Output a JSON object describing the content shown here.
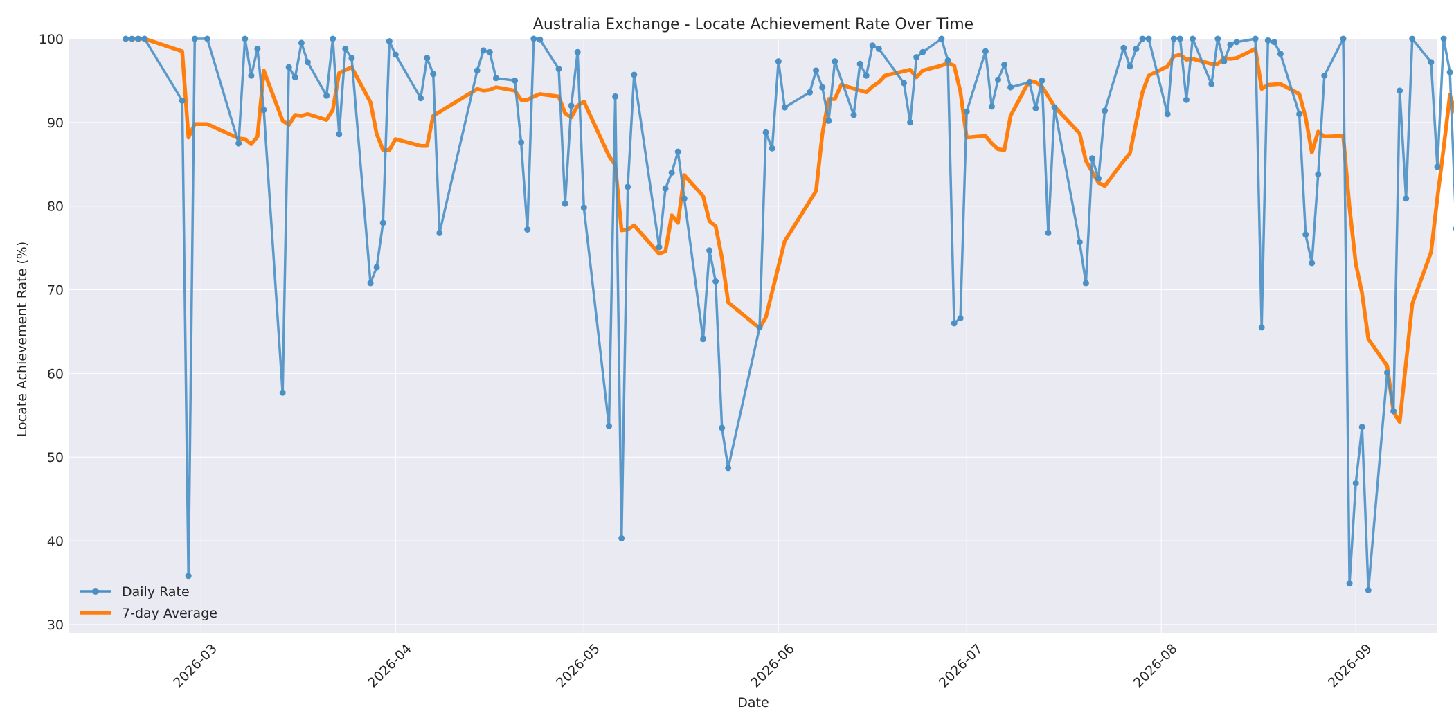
{
  "chart_data": {
    "type": "line",
    "title": "Australia Exchange - Locate Achievement Rate Over Time",
    "xlabel": "Date",
    "ylabel": "Locate Achievement Rate (%)",
    "xlim": [
      "2026-02-08",
      "2026-09-14"
    ],
    "ylim": [
      29,
      100
    ],
    "y_ticks": [
      30,
      40,
      50,
      60,
      70,
      80,
      90,
      100
    ],
    "x_ticks": [
      "2026-03-01",
      "2026-04-01",
      "2026-05-01",
      "2026-06-01",
      "2026-07-01",
      "2026-08-01",
      "2026-09-01"
    ],
    "x_tick_labels": [
      "2026-03",
      "2026-04",
      "2026-05",
      "2026-06",
      "2026-07",
      "2026-08",
      "2026-09"
    ],
    "grid": true,
    "legend_position": "bottom-left",
    "colors": {
      "background": "#eaeaf2",
      "daily": "#4a90c4",
      "average": "#ff7f0e",
      "grid": "#ffffff"
    },
    "series": [
      {
        "name": "Daily Rate",
        "marker": "circle",
        "points": [
          [
            "2026-02-17",
            100
          ],
          [
            "2026-02-18",
            100
          ],
          [
            "2026-02-19",
            100
          ],
          [
            "2026-02-20",
            100
          ],
          [
            "2026-02-26",
            92.6
          ],
          [
            "2026-02-27",
            35.8
          ],
          [
            "2026-02-28",
            100
          ],
          [
            "2026-03-02",
            100
          ],
          [
            "2026-03-07",
            87.5
          ],
          [
            "2026-03-08",
            100
          ],
          [
            "2026-03-09",
            95.6
          ],
          [
            "2026-03-10",
            98.8
          ],
          [
            "2026-03-11",
            91.5
          ],
          [
            "2026-03-14",
            57.7
          ],
          [
            "2026-03-15",
            96.6
          ],
          [
            "2026-03-16",
            95.4
          ],
          [
            "2026-03-17",
            99.5
          ],
          [
            "2026-03-18",
            97.2
          ],
          [
            "2026-03-21",
            93.2
          ],
          [
            "2026-03-22",
            100
          ],
          [
            "2026-03-23",
            88.6
          ],
          [
            "2026-03-24",
            98.8
          ],
          [
            "2026-03-25",
            97.7
          ],
          [
            "2026-03-28",
            70.8
          ],
          [
            "2026-03-29",
            72.7
          ],
          [
            "2026-03-30",
            78.0
          ],
          [
            "2026-03-31",
            99.7
          ],
          [
            "2026-04-01",
            98.1
          ],
          [
            "2026-04-05",
            92.9
          ],
          [
            "2026-04-06",
            97.7
          ],
          [
            "2026-04-07",
            95.8
          ],
          [
            "2026-04-08",
            76.8
          ],
          [
            "2026-04-14",
            96.2
          ],
          [
            "2026-04-15",
            98.6
          ],
          [
            "2026-04-16",
            98.4
          ],
          [
            "2026-04-17",
            95.3
          ],
          [
            "2026-04-20",
            95.0
          ],
          [
            "2026-04-21",
            87.6
          ],
          [
            "2026-04-22",
            77.2
          ],
          [
            "2026-04-23",
            100
          ],
          [
            "2026-04-24",
            99.9
          ],
          [
            "2026-04-27",
            96.4
          ],
          [
            "2026-04-28",
            80.3
          ],
          [
            "2026-04-29",
            92.0
          ],
          [
            "2026-04-30",
            98.4
          ],
          [
            "2026-05-01",
            79.8
          ],
          [
            "2026-05-05",
            53.7
          ],
          [
            "2026-05-06",
            93.1
          ],
          [
            "2026-05-07",
            40.3
          ],
          [
            "2026-05-08",
            82.3
          ],
          [
            "2026-05-09",
            95.7
          ],
          [
            "2026-05-13",
            75.1
          ],
          [
            "2026-05-14",
            82.1
          ],
          [
            "2026-05-15",
            84.0
          ],
          [
            "2026-05-16",
            86.5
          ],
          [
            "2026-05-17",
            80.9
          ],
          [
            "2026-05-20",
            64.1
          ],
          [
            "2026-05-21",
            74.7
          ],
          [
            "2026-05-22",
            71.0
          ],
          [
            "2026-05-23",
            53.5
          ],
          [
            "2026-05-24",
            48.7
          ],
          [
            "2026-05-29",
            65.5
          ],
          [
            "2026-05-30",
            88.8
          ],
          [
            "2026-05-31",
            86.9
          ],
          [
            "2026-06-01",
            97.3
          ],
          [
            "2026-06-02",
            91.8
          ],
          [
            "2026-06-06",
            93.6
          ],
          [
            "2026-06-07",
            96.2
          ],
          [
            "2026-06-08",
            94.2
          ],
          [
            "2026-06-09",
            90.2
          ],
          [
            "2026-06-10",
            97.3
          ],
          [
            "2026-06-13",
            90.9
          ],
          [
            "2026-06-14",
            97.0
          ],
          [
            "2026-06-15",
            95.6
          ],
          [
            "2026-06-16",
            99.2
          ],
          [
            "2026-06-17",
            98.8
          ],
          [
            "2026-06-21",
            94.7
          ],
          [
            "2026-06-22",
            90.0
          ],
          [
            "2026-06-23",
            97.8
          ],
          [
            "2026-06-24",
            98.4
          ],
          [
            "2026-06-27",
            100
          ],
          [
            "2026-06-28",
            97.4
          ],
          [
            "2026-06-29",
            66.0
          ],
          [
            "2026-06-30",
            66.6
          ],
          [
            "2026-07-01",
            91.3
          ],
          [
            "2026-07-04",
            98.5
          ],
          [
            "2026-07-05",
            91.9
          ],
          [
            "2026-07-06",
            95.1
          ],
          [
            "2026-07-07",
            96.9
          ],
          [
            "2026-07-08",
            94.2
          ],
          [
            "2026-07-11",
            94.8
          ],
          [
            "2026-07-12",
            91.7
          ],
          [
            "2026-07-13",
            95.0
          ],
          [
            "2026-07-14",
            76.8
          ],
          [
            "2026-07-15",
            91.8
          ],
          [
            "2026-07-19",
            75.7
          ],
          [
            "2026-07-20",
            70.8
          ],
          [
            "2026-07-21",
            85.7
          ],
          [
            "2026-07-22",
            83.3
          ],
          [
            "2026-07-23",
            91.4
          ],
          [
            "2026-07-26",
            98.9
          ],
          [
            "2026-07-27",
            96.7
          ],
          [
            "2026-07-28",
            98.8
          ],
          [
            "2026-07-29",
            100
          ],
          [
            "2026-07-30",
            100
          ],
          [
            "2026-08-02",
            91.0
          ],
          [
            "2026-08-03",
            100
          ],
          [
            "2026-08-04",
            100
          ],
          [
            "2026-08-05",
            92.7
          ],
          [
            "2026-08-06",
            100
          ],
          [
            "2026-08-09",
            94.6
          ],
          [
            "2026-08-10",
            100
          ],
          [
            "2026-08-11",
            97.3
          ],
          [
            "2026-08-12",
            99.3
          ],
          [
            "2026-08-13",
            99.6
          ],
          [
            "2026-08-16",
            100
          ],
          [
            "2026-08-17",
            65.5
          ],
          [
            "2026-08-18",
            99.8
          ],
          [
            "2026-08-19",
            99.6
          ],
          [
            "2026-08-20",
            98.2
          ],
          [
            "2026-08-23",
            91.0
          ],
          [
            "2026-08-24",
            76.6
          ],
          [
            "2026-08-25",
            73.2
          ],
          [
            "2026-08-26",
            83.8
          ],
          [
            "2026-08-27",
            95.6
          ],
          [
            "2026-08-30",
            100
          ],
          [
            "2026-08-31",
            34.9
          ],
          [
            "2026-09-01",
            46.9
          ],
          [
            "2026-09-02",
            53.6
          ],
          [
            "2026-09-03",
            34.1
          ],
          [
            "2026-09-06",
            60.1
          ],
          [
            "2026-09-07",
            55.5
          ],
          [
            "2026-09-08",
            93.8
          ],
          [
            "2026-09-09",
            80.9
          ],
          [
            "2026-09-10",
            100
          ],
          [
            "2026-09-13",
            97.2
          ],
          [
            "2026-09-14",
            84.7
          ],
          [
            "2026-09-15",
            100
          ],
          [
            "2026-09-16",
            96.0
          ],
          [
            "2026-09-17",
            77.3
          ]
        ]
      },
      {
        "name": "7-day Average",
        "marker": "none",
        "points": [
          [
            "2026-02-17",
            100
          ],
          [
            "2026-02-20",
            100
          ],
          [
            "2026-02-26",
            98.5
          ],
          [
            "2026-02-27",
            88.2
          ],
          [
            "2026-02-28",
            89.8
          ],
          [
            "2026-03-02",
            89.8
          ],
          [
            "2026-03-07",
            88.1
          ],
          [
            "2026-03-08",
            88.0
          ],
          [
            "2026-03-09",
            87.4
          ],
          [
            "2026-03-10",
            88.3
          ],
          [
            "2026-03-11",
            96.2
          ],
          [
            "2026-03-14",
            90.2
          ],
          [
            "2026-03-15",
            89.7
          ],
          [
            "2026-03-16",
            90.9
          ],
          [
            "2026-03-17",
            90.8
          ],
          [
            "2026-03-18",
            91.0
          ],
          [
            "2026-03-21",
            90.3
          ],
          [
            "2026-03-22",
            91.5
          ],
          [
            "2026-03-23",
            95.9
          ],
          [
            "2026-03-25",
            96.6
          ],
          [
            "2026-03-28",
            92.4
          ],
          [
            "2026-03-29",
            88.6
          ],
          [
            "2026-03-30",
            86.7
          ],
          [
            "2026-03-31",
            86.7
          ],
          [
            "2026-04-01",
            88.0
          ],
          [
            "2026-04-05",
            87.2
          ],
          [
            "2026-04-06",
            87.2
          ],
          [
            "2026-04-07",
            90.8
          ],
          [
            "2026-04-14",
            94.0
          ],
          [
            "2026-04-15",
            93.8
          ],
          [
            "2026-04-16",
            93.9
          ],
          [
            "2026-04-17",
            94.2
          ],
          [
            "2026-04-20",
            93.8
          ],
          [
            "2026-04-21",
            92.7
          ],
          [
            "2026-04-22",
            92.7
          ],
          [
            "2026-04-23",
            93.1
          ],
          [
            "2026-04-24",
            93.4
          ],
          [
            "2026-04-27",
            93.1
          ],
          [
            "2026-04-28",
            91.1
          ],
          [
            "2026-04-29",
            90.6
          ],
          [
            "2026-04-30",
            92.0
          ],
          [
            "2026-05-01",
            92.5
          ],
          [
            "2026-05-05",
            86.0
          ],
          [
            "2026-05-06",
            84.9
          ],
          [
            "2026-05-07",
            77.1
          ],
          [
            "2026-05-08",
            77.2
          ],
          [
            "2026-05-09",
            77.7
          ],
          [
            "2026-05-13",
            74.3
          ],
          [
            "2026-05-14",
            74.6
          ],
          [
            "2026-05-15",
            78.9
          ],
          [
            "2026-05-16",
            78.0
          ],
          [
            "2026-05-17",
            83.7
          ],
          [
            "2026-05-20",
            81.2
          ],
          [
            "2026-05-21",
            78.2
          ],
          [
            "2026-05-22",
            77.6
          ],
          [
            "2026-05-23",
            73.8
          ],
          [
            "2026-05-24",
            68.5
          ],
          [
            "2026-05-29",
            65.4
          ],
          [
            "2026-05-30",
            66.7
          ],
          [
            "2026-06-02",
            75.8
          ],
          [
            "2026-06-07",
            81.8
          ],
          [
            "2026-06-08",
            88.6
          ],
          [
            "2026-06-09",
            92.8
          ],
          [
            "2026-06-10",
            92.8
          ],
          [
            "2026-06-11",
            94.5
          ],
          [
            "2026-06-15",
            93.6
          ],
          [
            "2026-06-16",
            94.3
          ],
          [
            "2026-06-17",
            94.8
          ],
          [
            "2026-06-18",
            95.6
          ],
          [
            "2026-06-22",
            96.3
          ],
          [
            "2026-06-23",
            95.4
          ],
          [
            "2026-06-24",
            96.2
          ],
          [
            "2026-06-27",
            96.8
          ],
          [
            "2026-06-28",
            97.1
          ],
          [
            "2026-06-29",
            96.8
          ],
          [
            "2026-06-30",
            93.7
          ],
          [
            "2026-07-01",
            88.2
          ],
          [
            "2026-07-04",
            88.4
          ],
          [
            "2026-07-05",
            87.5
          ],
          [
            "2026-07-06",
            86.8
          ],
          [
            "2026-07-07",
            86.7
          ],
          [
            "2026-07-08",
            90.8
          ],
          [
            "2026-07-11",
            95.0
          ],
          [
            "2026-07-12",
            94.8
          ],
          [
            "2026-07-13",
            94.3
          ],
          [
            "2026-07-15",
            91.9
          ],
          [
            "2026-07-19",
            88.7
          ],
          [
            "2026-07-20",
            85.4
          ],
          [
            "2026-07-21",
            84.1
          ],
          [
            "2026-07-22",
            82.8
          ],
          [
            "2026-07-23",
            82.4
          ],
          [
            "2026-07-26",
            85.4
          ],
          [
            "2026-07-27",
            86.3
          ],
          [
            "2026-07-28",
            90.0
          ],
          [
            "2026-07-29",
            93.6
          ],
          [
            "2026-07-30",
            95.6
          ],
          [
            "2026-08-02",
            96.7
          ],
          [
            "2026-08-03",
            97.9
          ],
          [
            "2026-08-04",
            98.1
          ],
          [
            "2026-08-05",
            97.5
          ],
          [
            "2026-08-06",
            97.6
          ],
          [
            "2026-08-09",
            97.0
          ],
          [
            "2026-08-10",
            97.0
          ],
          [
            "2026-08-11",
            97.7
          ],
          [
            "2026-08-12",
            97.6
          ],
          [
            "2026-08-13",
            97.7
          ],
          [
            "2026-08-16",
            98.8
          ],
          [
            "2026-08-17",
            94.0
          ],
          [
            "2026-08-18",
            94.5
          ],
          [
            "2026-08-20",
            94.6
          ],
          [
            "2026-08-23",
            93.4
          ],
          [
            "2026-08-24",
            90.6
          ],
          [
            "2026-08-25",
            86.4
          ],
          [
            "2026-08-26",
            88.9
          ],
          [
            "2026-08-27",
            88.3
          ],
          [
            "2026-08-30",
            88.4
          ],
          [
            "2026-08-31",
            79.8
          ],
          [
            "2026-09-01",
            73.1
          ],
          [
            "2026-09-02",
            69.6
          ],
          [
            "2026-09-03",
            64.1
          ],
          [
            "2026-09-06",
            60.9
          ],
          [
            "2026-09-07",
            55.4
          ],
          [
            "2026-09-08",
            54.2
          ],
          [
            "2026-09-10",
            68.3
          ],
          [
            "2026-09-13",
            74.5
          ],
          [
            "2026-09-14",
            81.0
          ],
          [
            "2026-09-15",
            87.0
          ],
          [
            "2026-09-16",
            93.3
          ],
          [
            "2026-09-17",
            90.9
          ]
        ]
      }
    ]
  }
}
